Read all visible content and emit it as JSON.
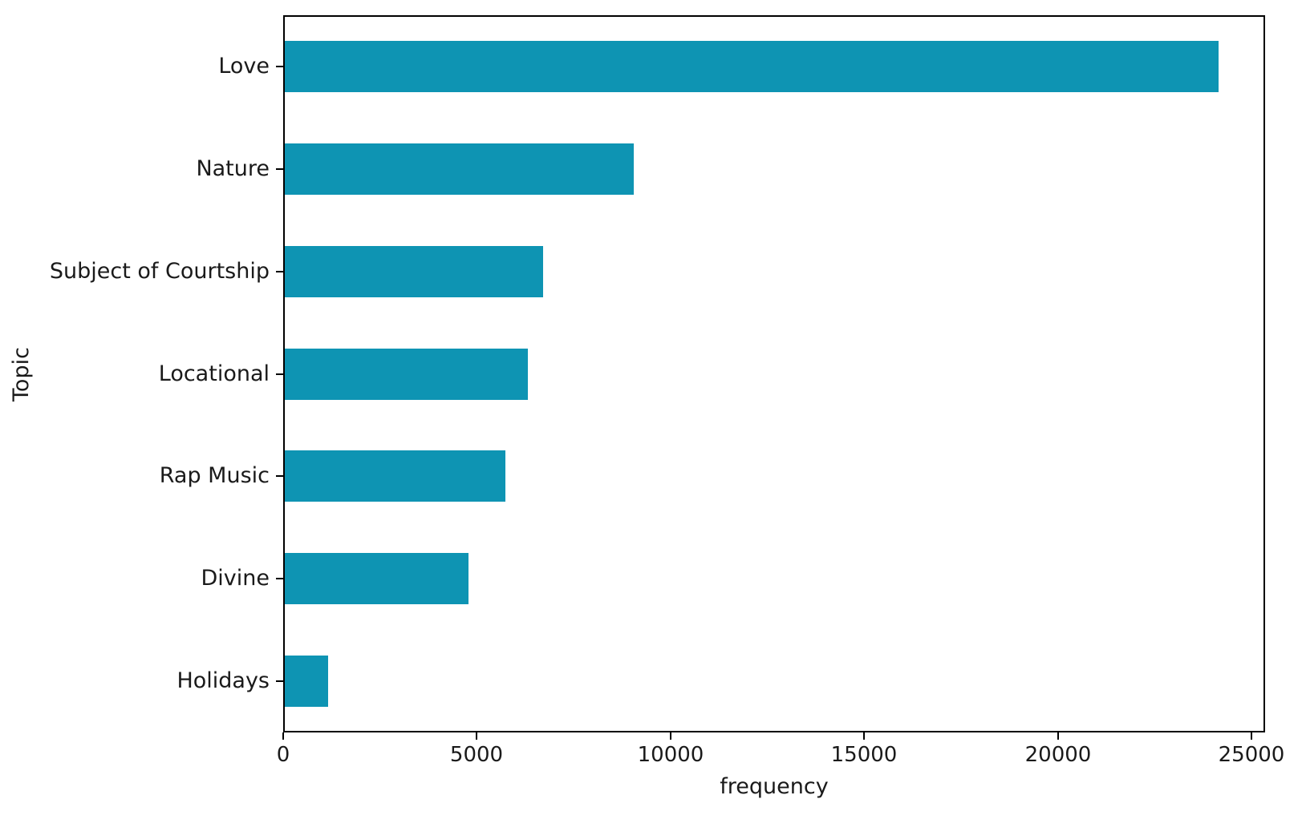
{
  "chart_data": {
    "type": "bar",
    "orientation": "horizontal",
    "title": "",
    "xlabel": "frequency",
    "ylabel": "Topic",
    "categories": [
      "Love",
      "Nature",
      "Subject of Courtship",
      "Locational",
      "Rap Music",
      "Divine",
      "Holidays"
    ],
    "values": [
      24100,
      9000,
      6670,
      6280,
      5700,
      4740,
      1120
    ],
    "xticks": [
      0,
      5000,
      10000,
      15000,
      20000,
      25000
    ],
    "xtick_labels": [
      "0",
      "5000",
      "10000",
      "15000",
      "20000",
      "25000"
    ],
    "xlim": [
      0,
      25350
    ],
    "grid": false,
    "legend_position": "none",
    "bar_color": "#0e94b3",
    "background_color": "#ffffff",
    "text_color": "#1a1a1a",
    "axis_color": "#000000"
  }
}
